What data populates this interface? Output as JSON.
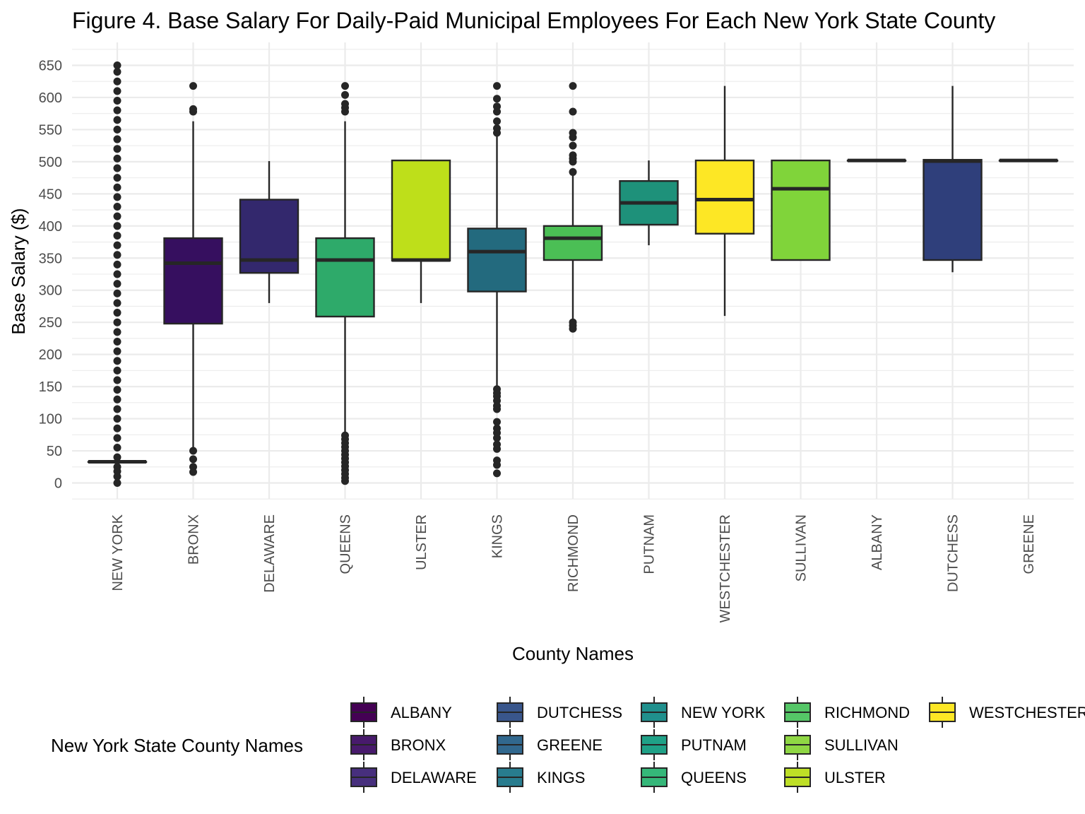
{
  "chart_data": {
    "type": "boxplot",
    "title": "Figure 4. Base Salary For Daily-Paid Municipal Employees For Each New York State County",
    "xlabel": "County Names",
    "ylabel": "Base Salary ($)",
    "ylim": [
      -25,
      675
    ],
    "yticks": [
      0,
      50,
      100,
      150,
      200,
      250,
      300,
      350,
      400,
      450,
      500,
      550,
      600,
      650
    ],
    "grid": true,
    "legend_position": "bottom",
    "legend_title": "New York State County Names",
    "categories": [
      "NEW YORK",
      "BRONX",
      "DELAWARE",
      "QUEENS",
      "ULSTER",
      "KINGS",
      "RICHMOND",
      "PUTNAM",
      "WESTCHESTER",
      "SULLIVAN",
      "ALBANY",
      "DUTCHESS",
      "GREENE"
    ],
    "boxes": [
      {
        "county": "NEW YORK",
        "min": 33,
        "q1": 33,
        "median": 33,
        "q3": 33,
        "max": 33,
        "outliers": [
          0,
          10,
          18,
          25,
          40,
          55,
          70,
          85,
          100,
          115,
          130,
          145,
          160,
          175,
          190,
          205,
          220,
          235,
          250,
          265,
          280,
          295,
          310,
          325,
          340,
          355,
          370,
          385,
          400,
          415,
          430,
          445,
          460,
          475,
          490,
          505,
          520,
          535,
          550,
          565,
          580,
          595,
          610,
          625,
          640,
          650
        ]
      },
      {
        "county": "BRONX",
        "min": 50,
        "q1": 248,
        "median": 342,
        "q3": 381,
        "max": 563,
        "outliers": [
          17,
          25,
          37,
          50,
          578,
          582,
          618
        ]
      },
      {
        "county": "DELAWARE",
        "min": 280,
        "q1": 327,
        "median": 347,
        "q3": 441,
        "max": 501,
        "outliers": []
      },
      {
        "county": "QUEENS",
        "min": 75,
        "q1": 259,
        "median": 347,
        "q3": 381,
        "max": 563,
        "outliers": [
          3,
          8,
          14,
          20,
          26,
          32,
          38,
          44,
          50,
          56,
          62,
          68,
          74,
          578,
          584,
          590,
          604,
          618
        ]
      },
      {
        "county": "ULSTER",
        "min": 280,
        "q1": 346,
        "median": 347,
        "q3": 502,
        "max": 502,
        "outliers": []
      },
      {
        "county": "KINGS",
        "min": 150,
        "q1": 298,
        "median": 360,
        "q3": 396,
        "max": 540,
        "outliers": [
          15,
          28,
          35,
          53,
          60,
          70,
          78,
          85,
          95,
          115,
          120,
          128,
          135,
          140,
          146,
          545,
          552,
          563,
          578,
          586,
          598,
          618
        ]
      },
      {
        "county": "RICHMOND",
        "min": 255,
        "q1": 347,
        "median": 381,
        "q3": 400,
        "max": 480,
        "outliers": [
          240,
          245,
          250,
          484,
          500,
          505,
          510,
          525,
          538,
          545,
          578,
          618
        ]
      },
      {
        "county": "PUTNAM",
        "min": 370,
        "q1": 402,
        "median": 436,
        "q3": 470,
        "max": 502,
        "outliers": []
      },
      {
        "county": "WESTCHESTER",
        "min": 260,
        "q1": 388,
        "median": 441,
        "q3": 502,
        "max": 618,
        "outliers": []
      },
      {
        "county": "SULLIVAN",
        "min": 347,
        "q1": 347,
        "median": 458,
        "q3": 502,
        "max": 502,
        "outliers": []
      },
      {
        "county": "ALBANY",
        "min": 502,
        "q1": 502,
        "median": 502,
        "q3": 502,
        "max": 502,
        "outliers": []
      },
      {
        "county": "DUTCHESS",
        "min": 328,
        "q1": 347,
        "median": 501,
        "q3": 503,
        "max": 618,
        "outliers": []
      },
      {
        "county": "GREENE",
        "min": 502,
        "q1": 502,
        "median": 502,
        "q3": 502,
        "max": 502,
        "outliers": []
      }
    ],
    "legend": [
      {
        "label": "ALBANY",
        "color": "#440154"
      },
      {
        "label": "BRONX",
        "color": "#481A6C"
      },
      {
        "label": "DELAWARE",
        "color": "#472F7D"
      },
      {
        "label": "DUTCHESS",
        "color": "#39568C"
      },
      {
        "label": "GREENE",
        "color": "#31688E"
      },
      {
        "label": "KINGS",
        "color": "#287C8E"
      },
      {
        "label": "NEW YORK",
        "color": "#20908D"
      },
      {
        "label": "PUTNAM",
        "color": "#1FA187"
      },
      {
        "label": "QUEENS",
        "color": "#35B779"
      },
      {
        "label": "RICHMOND",
        "color": "#55C667"
      },
      {
        "label": "SULLIVAN",
        "color": "#8FD744"
      },
      {
        "label": "ULSTER",
        "color": "#BEDF26"
      },
      {
        "label": "WESTCHESTER",
        "color": "#FDE725"
      }
    ],
    "box_colors": {
      "NEW YORK": "#20908D",
      "BRONX": "#360F5F",
      "DELAWARE": "#33286D",
      "QUEENS": "#2EAA6A",
      "ULSTER": "#BEDF1A",
      "KINGS": "#236A7E",
      "RICHMOND": "#4BBF55",
      "PUTNAM": "#1E917A",
      "WESTCHESTER": "#FDE725",
      "SULLIVAN": "#80D43A",
      "ALBANY": "#440154",
      "DUTCHESS": "#2F3F7B",
      "GREENE": "#31688E"
    }
  }
}
